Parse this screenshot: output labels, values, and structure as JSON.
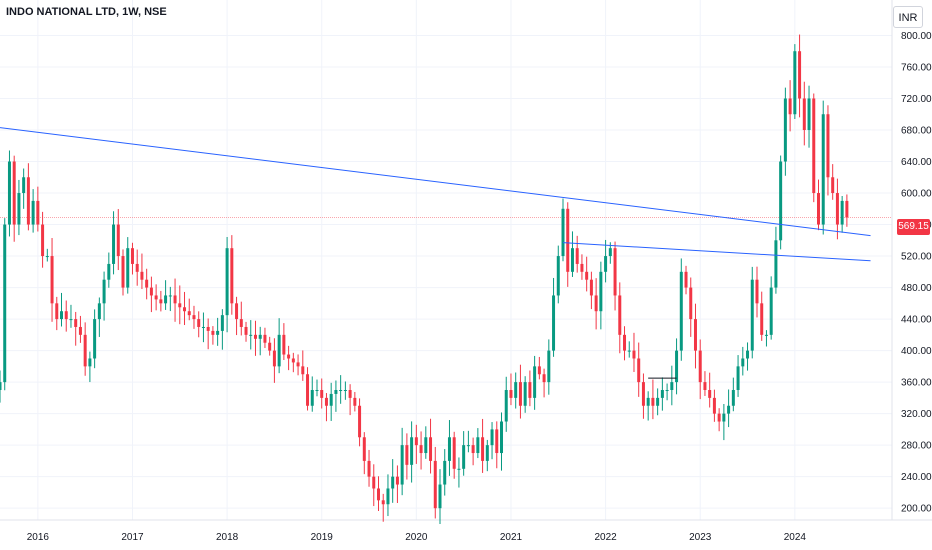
{
  "chart_data": {
    "type": "candlestick",
    "title": "INDO NATIONAL LTD, 1W, NSE",
    "currency": "INR",
    "last_price": "569.15",
    "y_ticks": [
      "200.00",
      "240.00",
      "280.00",
      "320.00",
      "360.00",
      "400.00",
      "440.00",
      "480.00",
      "520.00",
      "560.00",
      "600.00",
      "640.00",
      "680.00",
      "720.00",
      "760.00",
      "800.00"
    ],
    "x_ticks": [
      "2016",
      "2017",
      "2018",
      "2019",
      "2020",
      "2021",
      "2022",
      "2023",
      "2024"
    ],
    "ylim": [
      185,
      845
    ],
    "x_range": [
      2015.6,
      2024.9
    ],
    "grid": true,
    "trendlines": [
      {
        "points": [
          [
            2015.6,
            683
          ],
          [
            2024.8,
            546
          ]
        ],
        "color": "#2962ff"
      },
      {
        "points": [
          [
            2021.55,
            537
          ],
          [
            2024.8,
            514
          ]
        ],
        "color": "#2962ff"
      }
    ],
    "hline": {
      "x": [
        2022.45,
        2022.75
      ],
      "y": 365,
      "color": "#131722"
    },
    "close_series": [
      [
        2015.6,
        360
      ],
      [
        2015.65,
        560
      ],
      [
        2015.7,
        640
      ],
      [
        2015.75,
        560
      ],
      [
        2015.8,
        600
      ],
      [
        2015.85,
        620
      ],
      [
        2015.9,
        560
      ],
      [
        2015.95,
        590
      ],
      [
        2016.0,
        560
      ],
      [
        2016.05,
        520
      ],
      [
        2016.1,
        520
      ],
      [
        2016.15,
        460
      ],
      [
        2016.2,
        440
      ],
      [
        2016.25,
        450
      ],
      [
        2016.3,
        440
      ],
      [
        2016.35,
        440
      ],
      [
        2016.4,
        430
      ],
      [
        2016.45,
        420
      ],
      [
        2016.5,
        380
      ],
      [
        2016.55,
        390
      ],
      [
        2016.6,
        440
      ],
      [
        2016.65,
        460
      ],
      [
        2016.7,
        490
      ],
      [
        2016.75,
        510
      ],
      [
        2016.8,
        560
      ],
      [
        2016.85,
        520
      ],
      [
        2016.9,
        480
      ],
      [
        2016.95,
        530
      ],
      [
        2017.0,
        510
      ],
      [
        2017.05,
        500
      ],
      [
        2017.1,
        490
      ],
      [
        2017.15,
        480
      ],
      [
        2017.2,
        470
      ],
      [
        2017.25,
        465
      ],
      [
        2017.3,
        460
      ],
      [
        2017.35,
        470
      ],
      [
        2017.4,
        470
      ],
      [
        2017.45,
        460
      ],
      [
        2017.5,
        455
      ],
      [
        2017.55,
        450
      ],
      [
        2017.6,
        445
      ],
      [
        2017.65,
        440
      ],
      [
        2017.7,
        430
      ],
      [
        2017.75,
        430
      ],
      [
        2017.8,
        425
      ],
      [
        2017.85,
        420
      ],
      [
        2017.9,
        425
      ],
      [
        2017.95,
        445
      ],
      [
        2018.0,
        530
      ],
      [
        2018.05,
        460
      ],
      [
        2018.1,
        440
      ],
      [
        2018.15,
        430
      ],
      [
        2018.2,
        420
      ],
      [
        2018.25,
        420
      ],
      [
        2018.3,
        415
      ],
      [
        2018.35,
        420
      ],
      [
        2018.4,
        410
      ],
      [
        2018.45,
        400
      ],
      [
        2018.5,
        380
      ],
      [
        2018.55,
        420
      ],
      [
        2018.6,
        395
      ],
      [
        2018.65,
        390
      ],
      [
        2018.7,
        385
      ],
      [
        2018.75,
        380
      ],
      [
        2018.8,
        370
      ],
      [
        2018.85,
        330
      ],
      [
        2018.9,
        350
      ],
      [
        2018.95,
        350
      ],
      [
        2019.0,
        340
      ],
      [
        2019.05,
        330
      ],
      [
        2019.1,
        345
      ],
      [
        2019.15,
        350
      ],
      [
        2019.2,
        350
      ],
      [
        2019.25,
        350
      ],
      [
        2019.3,
        340
      ],
      [
        2019.35,
        330
      ],
      [
        2019.4,
        290
      ],
      [
        2019.45,
        260
      ],
      [
        2019.5,
        240
      ],
      [
        2019.55,
        225
      ],
      [
        2019.6,
        210
      ],
      [
        2019.65,
        205
      ],
      [
        2019.7,
        225
      ],
      [
        2019.75,
        240
      ],
      [
        2019.8,
        230
      ],
      [
        2019.85,
        280
      ],
      [
        2019.9,
        255
      ],
      [
        2019.95,
        290
      ],
      [
        2020.0,
        280
      ],
      [
        2020.05,
        270
      ],
      [
        2020.1,
        290
      ],
      [
        2020.15,
        260
      ],
      [
        2020.2,
        200
      ],
      [
        2020.25,
        230
      ],
      [
        2020.3,
        260
      ],
      [
        2020.35,
        290
      ],
      [
        2020.4,
        250
      ],
      [
        2020.45,
        250
      ],
      [
        2020.5,
        280
      ],
      [
        2020.55,
        280
      ],
      [
        2020.6,
        270
      ],
      [
        2020.65,
        290
      ],
      [
        2020.7,
        260
      ],
      [
        2020.75,
        280
      ],
      [
        2020.8,
        300
      ],
      [
        2020.85,
        270
      ],
      [
        2020.9,
        310
      ],
      [
        2020.95,
        350
      ],
      [
        2021.0,
        340
      ],
      [
        2021.05,
        360
      ],
      [
        2021.1,
        330
      ],
      [
        2021.15,
        360
      ],
      [
        2021.2,
        340
      ],
      [
        2021.25,
        380
      ],
      [
        2021.3,
        370
      ],
      [
        2021.35,
        360
      ],
      [
        2021.4,
        400
      ],
      [
        2021.45,
        470
      ],
      [
        2021.5,
        520
      ],
      [
        2021.55,
        580
      ],
      [
        2021.6,
        500
      ],
      [
        2021.65,
        530
      ],
      [
        2021.7,
        510
      ],
      [
        2021.75,
        500
      ],
      [
        2021.8,
        490
      ],
      [
        2021.85,
        470
      ],
      [
        2021.9,
        450
      ],
      [
        2021.95,
        500
      ],
      [
        2022.0,
        520
      ],
      [
        2022.05,
        530
      ],
      [
        2022.1,
        470
      ],
      [
        2022.15,
        420
      ],
      [
        2022.2,
        400
      ],
      [
        2022.25,
        400
      ],
      [
        2022.3,
        390
      ],
      [
        2022.35,
        360
      ],
      [
        2022.4,
        330
      ],
      [
        2022.45,
        340
      ],
      [
        2022.5,
        330
      ],
      [
        2022.55,
        340
      ],
      [
        2022.6,
        350
      ],
      [
        2022.65,
        350
      ],
      [
        2022.7,
        360
      ],
      [
        2022.75,
        400
      ],
      [
        2022.8,
        500
      ],
      [
        2022.85,
        480
      ],
      [
        2022.9,
        440
      ],
      [
        2022.95,
        400
      ],
      [
        2023.0,
        360
      ],
      [
        2023.05,
        350
      ],
      [
        2023.1,
        340
      ],
      [
        2023.15,
        320
      ],
      [
        2023.2,
        310
      ],
      [
        2023.25,
        320
      ],
      [
        2023.3,
        330
      ],
      [
        2023.35,
        350
      ],
      [
        2023.4,
        380
      ],
      [
        2023.45,
        390
      ],
      [
        2023.5,
        400
      ],
      [
        2023.55,
        490
      ],
      [
        2023.6,
        460
      ],
      [
        2023.65,
        420
      ],
      [
        2023.7,
        420
      ],
      [
        2023.75,
        480
      ],
      [
        2023.8,
        540
      ],
      [
        2023.85,
        640
      ],
      [
        2023.9,
        720
      ],
      [
        2023.95,
        700
      ],
      [
        2024.0,
        780
      ],
      [
        2024.05,
        720
      ],
      [
        2024.1,
        680
      ],
      [
        2024.15,
        720
      ],
      [
        2024.2,
        600
      ],
      [
        2024.25,
        560
      ],
      [
        2024.3,
        700
      ],
      [
        2024.35,
        620
      ],
      [
        2024.4,
        600
      ],
      [
        2024.45,
        560
      ],
      [
        2024.5,
        590
      ],
      [
        2024.55,
        569
      ]
    ]
  }
}
